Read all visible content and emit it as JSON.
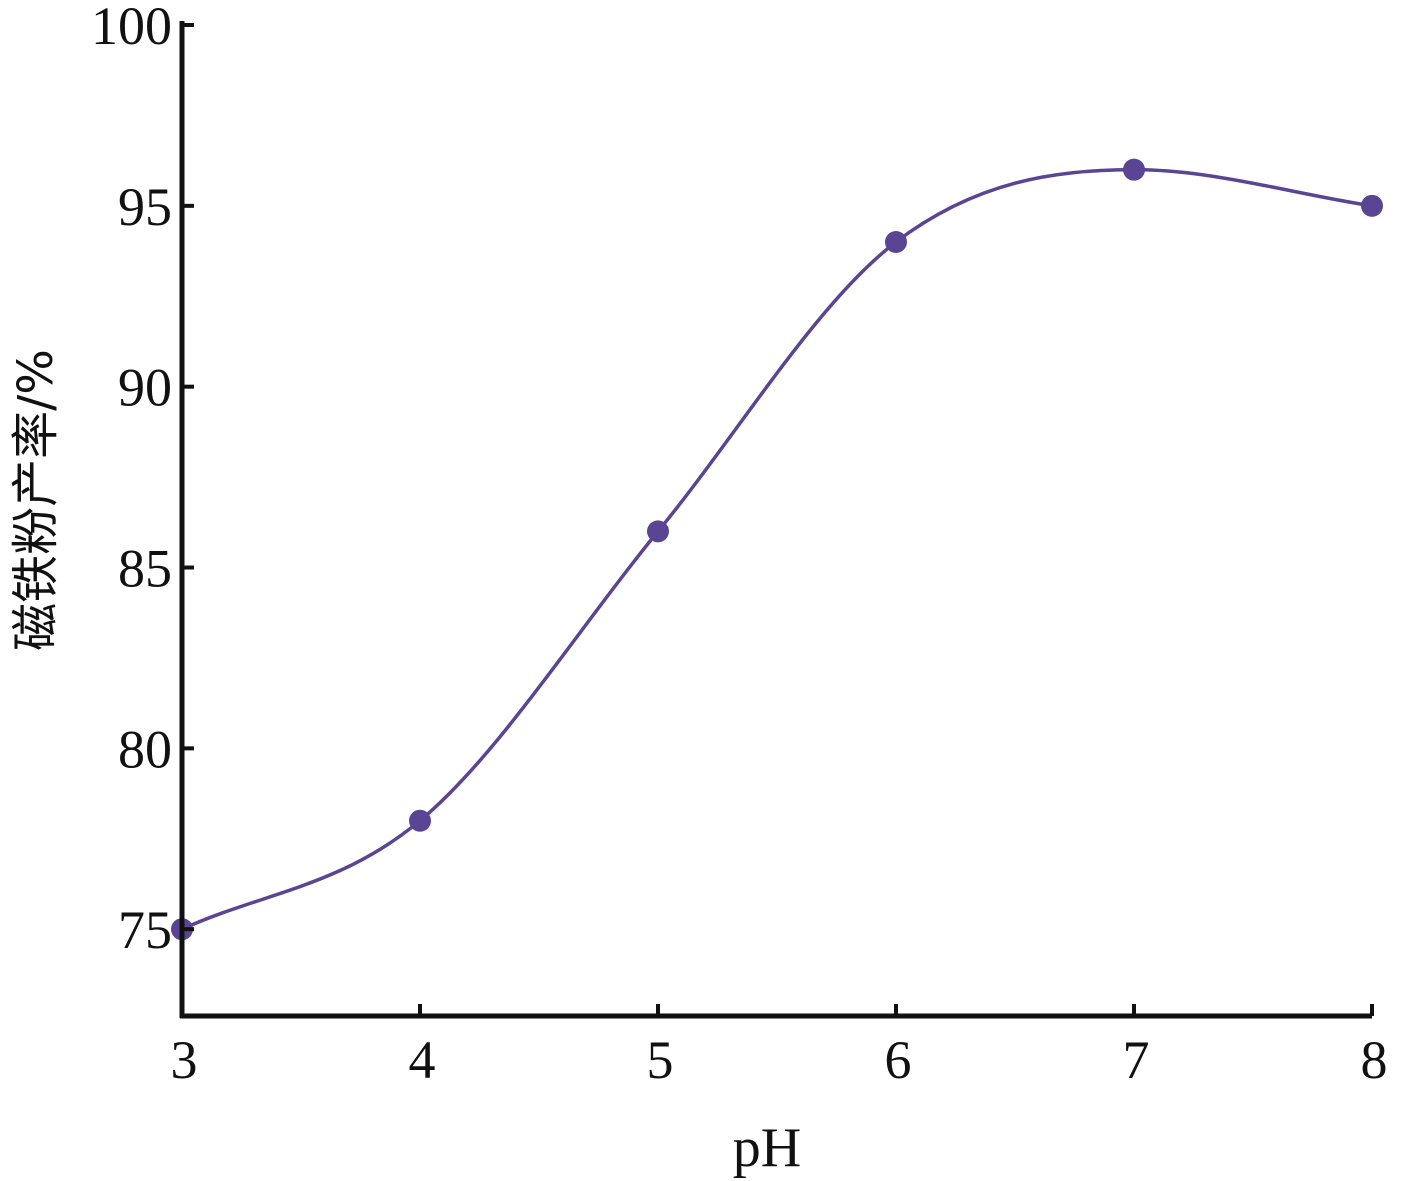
{
  "chart_data": {
    "type": "line",
    "title": "",
    "xlabel": "pH",
    "ylabel": "磁铁粉产率/%",
    "xlim": [
      3,
      8
    ],
    "ylim": [
      72.6,
      100
    ],
    "xticks": [
      3,
      4,
      5,
      6,
      7,
      8
    ],
    "yticks": [
      75,
      80,
      85,
      90,
      95,
      100
    ],
    "grid": false,
    "legend": "none",
    "series": [
      {
        "x": [
          3,
          4,
          5,
          6,
          7,
          8
        ],
        "y": [
          75,
          78,
          86,
          94,
          96,
          95
        ],
        "color": "#5a4494",
        "smooth": true,
        "markers": true
      }
    ]
  }
}
